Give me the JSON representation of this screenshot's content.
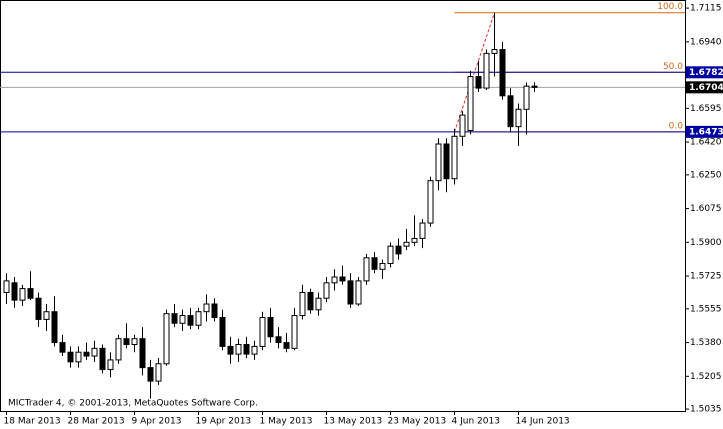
{
  "chart_data": {
    "type": "candlestick",
    "categories": [
      "18 Mar 2013",
      null,
      null,
      null,
      null,
      null,
      null,
      null,
      "28 Mar 2013",
      null,
      null,
      null,
      null,
      null,
      null,
      null,
      "9 Apr 2013",
      null,
      null,
      null,
      null,
      null,
      null,
      null,
      "19 Apr 2013",
      null,
      null,
      null,
      null,
      null,
      null,
      null,
      "1 May 2013",
      null,
      null,
      null,
      null,
      null,
      null,
      null,
      "13 May 2013",
      null,
      null,
      null,
      null,
      null,
      null,
      null,
      "23 May 2013",
      null,
      null,
      null,
      null,
      null,
      null,
      null,
      "4 Jun 2013",
      null,
      null,
      null,
      null,
      null,
      null,
      null,
      "14 Jun 2013",
      null,
      null
    ],
    "open": [
      1.564,
      1.569,
      1.56,
      1.566,
      1.561,
      1.55,
      1.554,
      1.538,
      1.533,
      1.528,
      1.533,
      1.531,
      1.535,
      1.524,
      1.529,
      1.54,
      1.537,
      1.54,
      1.525,
      1.518,
      1.527,
      1.553,
      1.548,
      1.552,
      1.547,
      1.554,
      1.558,
      1.551,
      1.536,
      1.532,
      1.537,
      1.532,
      1.536,
      1.551,
      1.541,
      1.538,
      1.535,
      1.552,
      1.564,
      1.555,
      1.561,
      1.569,
      1.572,
      1.57,
      1.558,
      1.57,
      1.582,
      1.576,
      1.579,
      1.588,
      1.588,
      1.59,
      1.592,
      1.6,
      1.622,
      1.641,
      1.623,
      1.645,
      1.648,
      1.676,
      1.67,
      1.688,
      1.69,
      1.666,
      1.65,
      1.659,
      1.671
    ],
    "high": [
      1.574,
      1.572,
      1.568,
      1.575,
      1.564,
      1.558,
      1.562,
      1.542,
      1.536,
      1.536,
      1.538,
      1.539,
      1.537,
      1.533,
      1.542,
      1.548,
      1.542,
      1.546,
      1.529,
      1.53,
      1.555,
      1.558,
      1.555,
      1.556,
      1.556,
      1.563,
      1.561,
      1.555,
      1.541,
      1.54,
      1.541,
      1.539,
      1.554,
      1.556,
      1.546,
      1.543,
      1.556,
      1.568,
      1.566,
      1.564,
      1.572,
      1.576,
      1.578,
      1.574,
      1.572,
      1.584,
      1.585,
      1.581,
      1.59,
      1.592,
      1.597,
      1.604,
      1.602,
      1.624,
      1.644,
      1.644,
      1.649,
      1.658,
      1.679,
      1.684,
      1.69,
      1.7091,
      1.694,
      1.67,
      1.662,
      1.673,
      1.673
    ],
    "low": [
      1.558,
      1.556,
      1.557,
      1.56,
      1.546,
      1.544,
      1.536,
      1.531,
      1.525,
      1.525,
      1.529,
      1.528,
      1.522,
      1.52,
      1.527,
      1.535,
      1.533,
      1.521,
      1.509,
      1.516,
      1.526,
      1.546,
      1.544,
      1.545,
      1.545,
      1.549,
      1.549,
      1.534,
      1.527,
      1.528,
      1.53,
      1.529,
      1.534,
      1.538,
      1.535,
      1.533,
      1.534,
      1.55,
      1.553,
      1.552,
      1.559,
      1.565,
      1.568,
      1.556,
      1.557,
      1.568,
      1.574,
      1.571,
      1.577,
      1.581,
      1.586,
      1.588,
      1.587,
      1.598,
      1.617,
      1.616,
      1.62,
      1.64,
      1.646,
      1.668,
      1.669,
      1.676,
      1.664,
      1.647,
      1.64,
      1.646,
      1.668
    ],
    "close": [
      1.57,
      1.56,
      1.566,
      1.561,
      1.55,
      1.554,
      1.538,
      1.533,
      1.528,
      1.533,
      1.531,
      1.535,
      1.524,
      1.529,
      1.54,
      1.537,
      1.54,
      1.525,
      1.518,
      1.527,
      1.553,
      1.548,
      1.552,
      1.547,
      1.554,
      1.558,
      1.551,
      1.536,
      1.532,
      1.537,
      1.532,
      1.536,
      1.551,
      1.541,
      1.538,
      1.535,
      1.552,
      1.564,
      1.555,
      1.561,
      1.569,
      1.572,
      1.57,
      1.558,
      1.57,
      1.582,
      1.576,
      1.579,
      1.588,
      1.584,
      1.59,
      1.592,
      1.6,
      1.622,
      1.641,
      1.623,
      1.645,
      1.656,
      1.676,
      1.67,
      1.688,
      1.69,
      1.666,
      1.65,
      1.659,
      1.671,
      1.6704
    ],
    "ylim": [
      1.5025,
      1.7157
    ],
    "yticks": [
      {
        "value": 1.7115,
        "label": "1.7115"
      },
      {
        "value": 1.694,
        "label": "1.6940"
      },
      {
        "value": 1.6595,
        "label": "1.6595"
      },
      {
        "value": 1.642,
        "label": "1.6420"
      },
      {
        "value": 1.625,
        "label": "1.6250"
      },
      {
        "value": 1.6075,
        "label": "1.6075"
      },
      {
        "value": 1.59,
        "label": "1.5900"
      },
      {
        "value": 1.5725,
        "label": "1.5725"
      },
      {
        "value": 1.5555,
        "label": "1.5555"
      },
      {
        "value": 1.538,
        "label": "1.5380"
      },
      {
        "value": 1.5205,
        "label": "1.5205"
      },
      {
        "value": 1.5035,
        "label": "1.5035"
      }
    ],
    "hlines": [
      {
        "value": 1.6782,
        "color": "#0000a0"
      },
      {
        "value": 1.6473,
        "color": "#0000a0"
      },
      {
        "value": 1.6704,
        "color": "#a0a0a0"
      }
    ],
    "fib_low": 1.6473,
    "fib_high": 1.7091,
    "fib_color": "#d2691e",
    "fib_levels": [
      {
        "value": 100,
        "label": "100.0"
      },
      {
        "value": 50,
        "label": "50.0"
      },
      {
        "value": 0,
        "label": "0.0"
      }
    ],
    "footer": "MICTrader 4, © 2001-2013, MetaQuotes Software Corp."
  }
}
